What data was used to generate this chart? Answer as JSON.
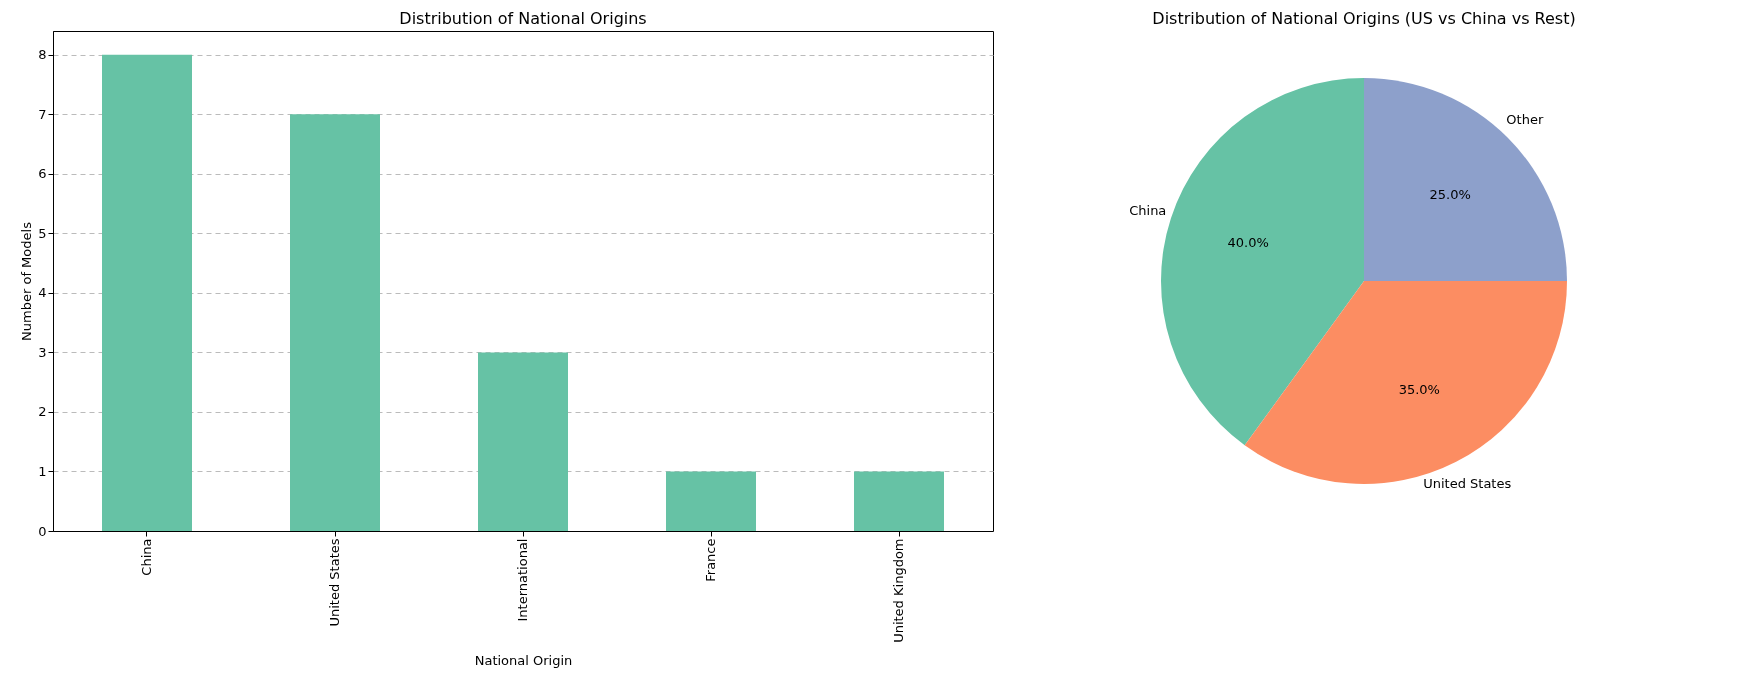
{
  "chart_data": [
    {
      "type": "bar",
      "title": "Distribution of National Origins",
      "xlabel": "National Origin",
      "ylabel": "Number of Models",
      "categories": [
        "China",
        "United States",
        "International",
        "France",
        "United Kingdom"
      ],
      "values": [
        8,
        7,
        3,
        1,
        1
      ],
      "color": "#66c2a5",
      "ylim": [
        0,
        8.4
      ],
      "yticks": [
        0,
        1,
        2,
        3,
        4,
        5,
        6,
        7,
        8
      ],
      "grid": "y"
    },
    {
      "type": "pie",
      "title": "Distribution of National Origins (US vs China vs Rest)",
      "categories": [
        "China",
        "United States",
        "Other"
      ],
      "values": [
        40,
        35,
        25
      ],
      "colors": [
        "#66c2a5",
        "#fc8d62",
        "#8da0cb"
      ],
      "value_labels": [
        "40.0%",
        "35.0%",
        "25.0%"
      ],
      "legend": false
    }
  ]
}
